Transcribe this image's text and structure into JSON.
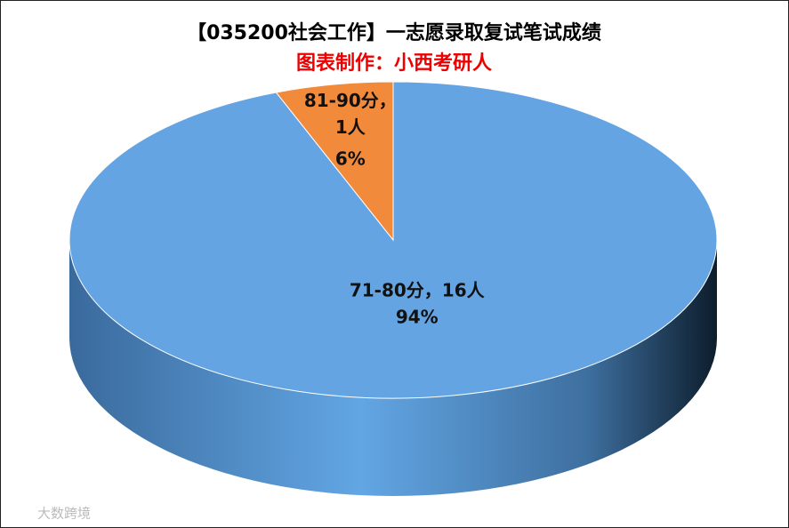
{
  "chart_data": {
    "type": "pie3d",
    "title": "【035200社会工作】一志愿录取复试笔试成绩",
    "subtitle": "图表制作：小西考研人",
    "categories": [
      "71-80分",
      "81-90分"
    ],
    "values": [
      16,
      1
    ],
    "value_labels": [
      "71-80分，16人",
      "81-90分，1人"
    ],
    "percents": [
      94,
      6
    ],
    "percent_labels": [
      "94%",
      "6%"
    ],
    "colors": [
      "#64a4e2",
      "#f28a3c"
    ],
    "watermark": "大数跨境"
  }
}
